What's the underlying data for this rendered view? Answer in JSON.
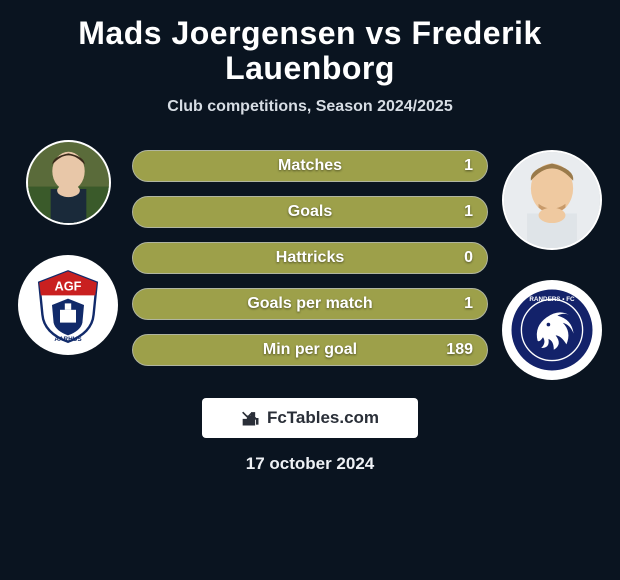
{
  "title": "Mads Joergensen vs Frederik Lauenborg",
  "subtitle": "Club competitions, Season 2024/2025",
  "date": "17 october 2024",
  "badge_text": "FcTables.com",
  "colors": {
    "background": "#0a1420",
    "bar_fill": "#9da04a",
    "bar_border": "#b0b5a0",
    "text": "#ffffff",
    "subtitle": "#d7dde4",
    "badge_bg": "#ffffff",
    "badge_text": "#2a2f38"
  },
  "stats": [
    {
      "label": "Matches",
      "value": "1"
    },
    {
      "label": "Goals",
      "value": "1"
    },
    {
      "label": "Hattricks",
      "value": "0"
    },
    {
      "label": "Goals per match",
      "value": "1"
    },
    {
      "label": "Min per goal",
      "value": "189"
    }
  ],
  "left": {
    "player_name": "Mads Joergensen",
    "club_name": "AGF Aarhus"
  },
  "right": {
    "player_name": "Frederik Lauenborg",
    "club_name": "Randers FC"
  }
}
